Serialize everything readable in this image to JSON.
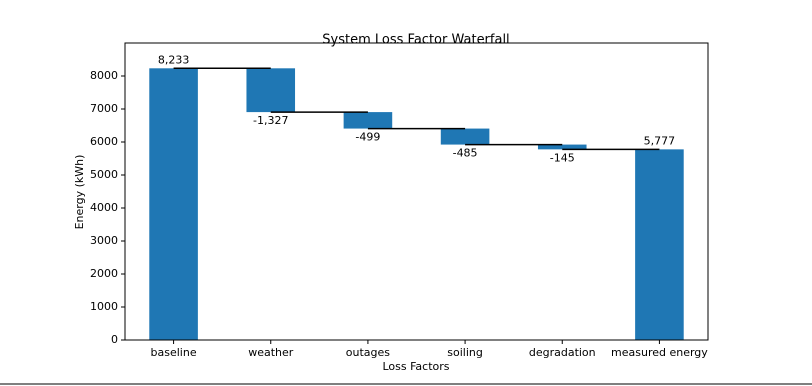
{
  "chart_data": {
    "type": "waterfall",
    "title": "System Loss Factor Waterfall",
    "x_label": "Loss Factors",
    "y_label": "Energy (kWh)",
    "categories": [
      "baseline",
      "weather",
      "outages",
      "soiling",
      "degradation",
      "measured energy"
    ],
    "values": [
      8233,
      -1327,
      -499,
      -485,
      -145,
      5777
    ],
    "value_labels": [
      "8,233",
      "-1,327",
      "-499",
      "-485",
      "-145",
      "5,777"
    ],
    "color": "#1f77b4",
    "ylim": [
      0,
      9000
    ],
    "yticks": [
      0,
      1000,
      2000,
      3000,
      4000,
      5000,
      6000,
      7000,
      8000
    ]
  }
}
